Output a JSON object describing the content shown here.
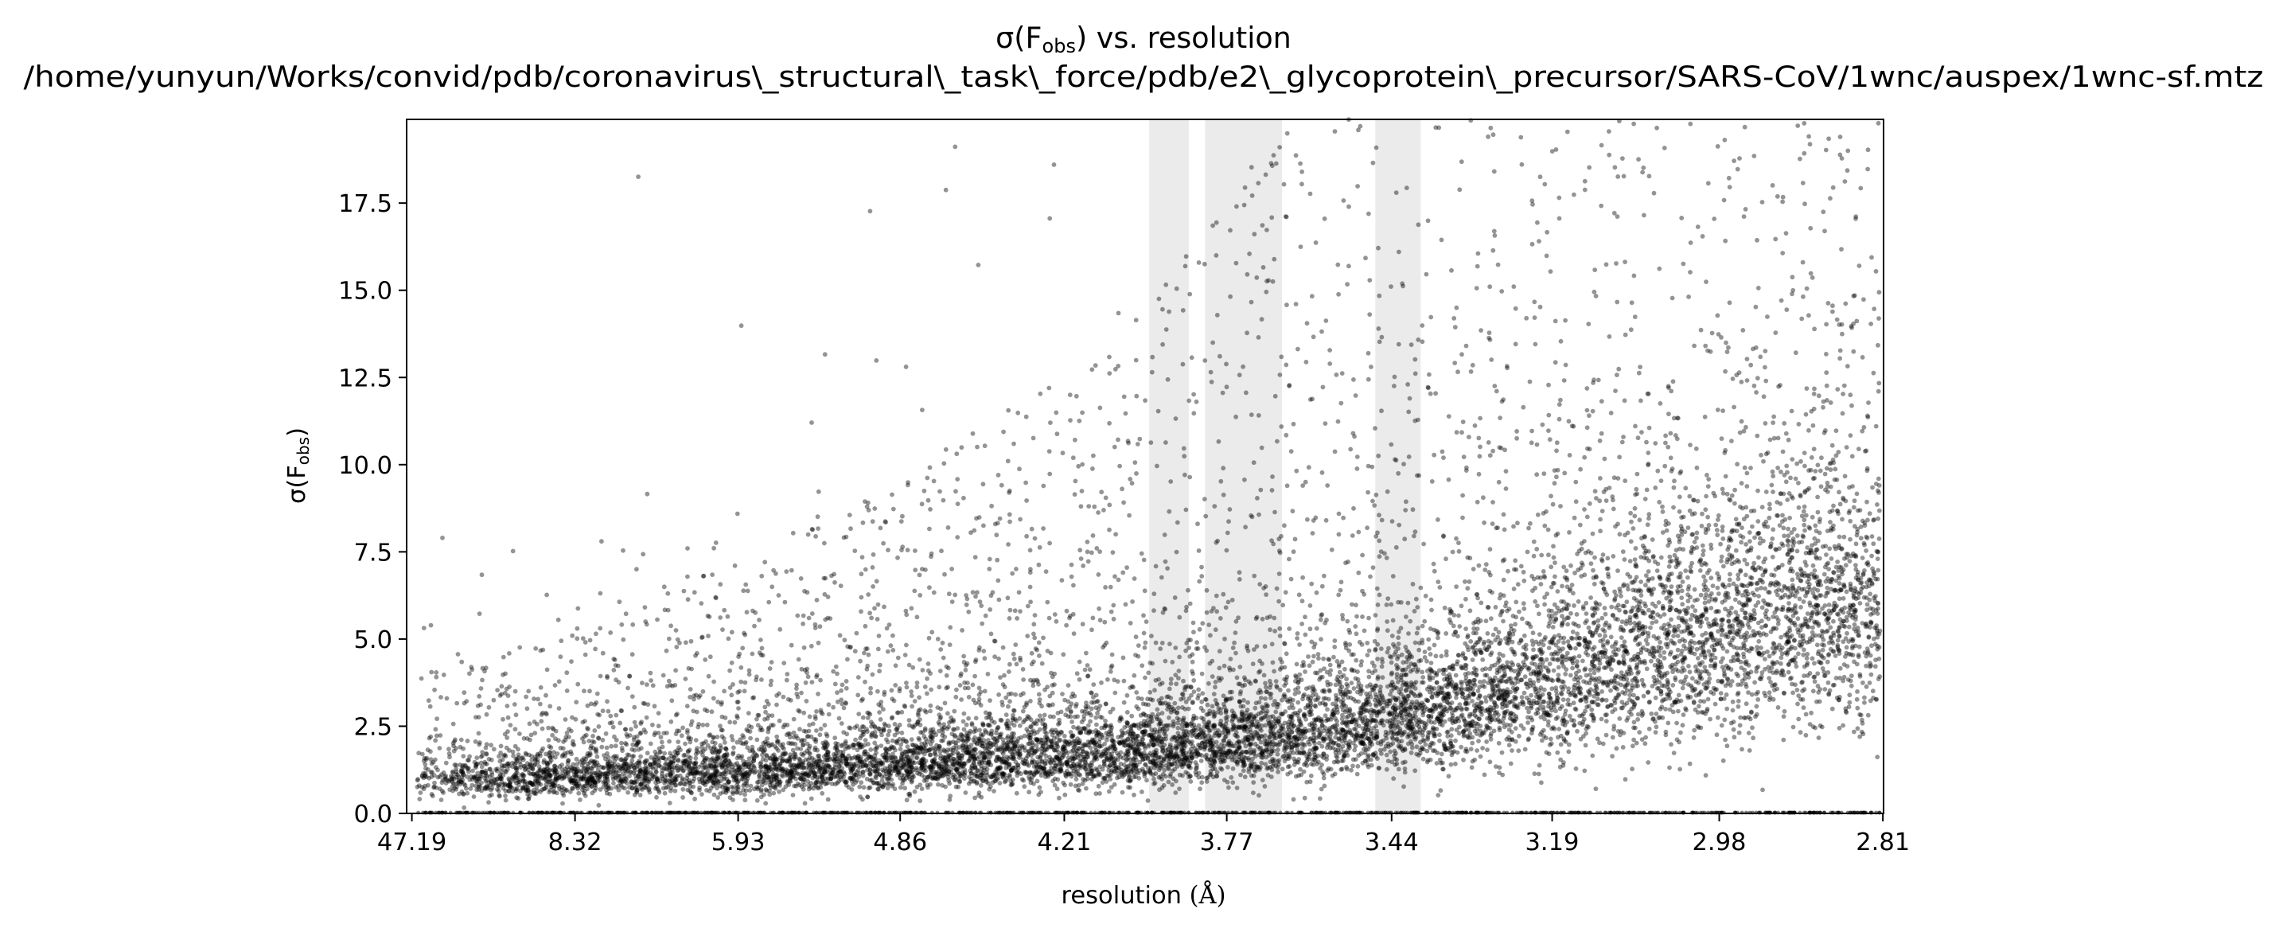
{
  "chart_data": {
    "type": "scatter",
    "title": {
      "main_prefix": "σ(F",
      "main_subscript": "obs",
      "main_suffix": ") vs. resolution",
      "path": "/home/yunyun/Works/convid/pdb/coronavirus\\_structural\\_task\\_force/pdb/e2\\_glycoprotein\\_precursor/SARS-CoV/1wnc/auspex/1wnc-sf.mtz"
    },
    "xlabel": {
      "prefix": "resolution ",
      "unit": "(Å)"
    },
    "ylabel": {
      "prefix": "σ(F",
      "subscript": "obs",
      "suffix": ")"
    },
    "x_scale": "1/d^2",
    "x_ticks": [
      "47.19",
      "8.32",
      "5.93",
      "4.86",
      "4.21",
      "3.77",
      "3.44",
      "3.19",
      "2.98",
      "2.81"
    ],
    "x_tick_values_inv_d2": [
      0.000449,
      0.014446,
      0.028438,
      0.042337,
      0.056418,
      0.070355,
      0.084499,
      0.09827,
      0.112606,
      0.126642
    ],
    "xlim_inv_d2": [
      0.0,
      0.1267
    ],
    "ylim": [
      0.0,
      19.9
    ],
    "y_ticks": [
      "0.0",
      "2.5",
      "5.0",
      "7.5",
      "10.0",
      "12.5",
      "15.0",
      "17.5"
    ],
    "y_tick_values": [
      0.0,
      2.5,
      5.0,
      7.5,
      10.0,
      12.5,
      15.0,
      17.5
    ],
    "ice_ring_bands_resolution": [
      [
        "3.96",
        "3.86"
      ],
      [
        "3.82",
        "3.65"
      ],
      [
        "3.47",
        "3.39"
      ]
    ],
    "ice_ring_bands_inv_d2": [
      [
        0.0637,
        0.0671
      ],
      [
        0.0685,
        0.0751
      ],
      [
        0.0831,
        0.087
      ]
    ],
    "series": [
      {
        "style": "point cloud",
        "point_count_estimate": 12000,
        "trend_bins_inv_d2": [
          0.0,
          0.01,
          0.02,
          0.03,
          0.04,
          0.05,
          0.06,
          0.07,
          0.08,
          0.09,
          0.1,
          0.11,
          0.12,
          0.1267
        ],
        "trend_median_sigma": [
          1.0,
          1.05,
          1.15,
          1.3,
          1.45,
          1.6,
          1.8,
          2.1,
          2.5,
          3.2,
          4.2,
          5.2,
          6.0,
          6.3
        ],
        "y_max": 19.9
      }
    ],
    "colors": {
      "points": "#000000",
      "ice_ring": "#ebebeb"
    },
    "grid": false,
    "legend": "none"
  }
}
